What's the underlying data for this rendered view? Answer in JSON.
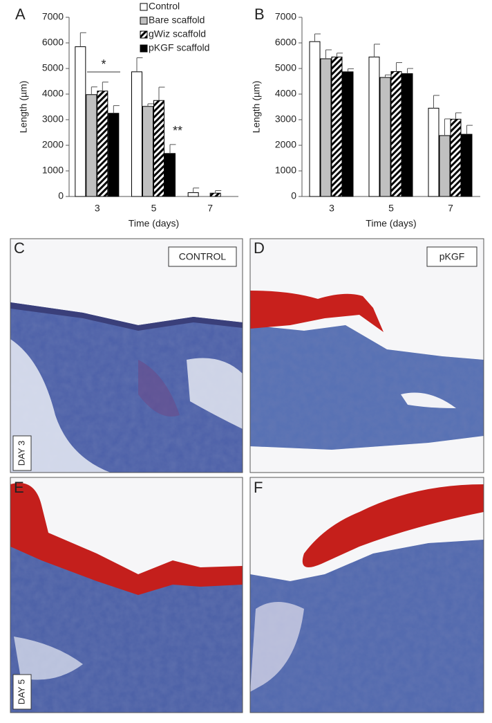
{
  "chart_data": [
    {
      "type": "bar",
      "panel_label": "A",
      "ylabel": "Length (µm)",
      "xlabel": "Time (days)",
      "categories": [
        "3",
        "5",
        "7"
      ],
      "ylim": [
        0,
        7000
      ],
      "yticks": [
        0,
        1000,
        2000,
        3000,
        4000,
        5000,
        6000,
        7000
      ],
      "legend": "upper right",
      "annotations": [
        "*",
        "**"
      ],
      "series": [
        {
          "name": "Control",
          "color": "#ffffff",
          "values": [
            5850,
            4870,
            150
          ],
          "errors": [
            550,
            550,
            180
          ]
        },
        {
          "name": "Bare scaffold",
          "color": "#c0c0c0",
          "values": [
            3980,
            3520,
            null
          ],
          "errors": [
            300,
            100,
            null
          ]
        },
        {
          "name": "gWiz scaffold",
          "color": "#000000",
          "hatch": true,
          "values": [
            4120,
            3750,
            130
          ],
          "errors": [
            350,
            520,
            100
          ]
        },
        {
          "name": "pKGF scaffold",
          "color": "#000000",
          "values": [
            3250,
            1680,
            null
          ],
          "errors": [
            300,
            350,
            null
          ]
        }
      ]
    },
    {
      "type": "bar",
      "panel_label": "B",
      "ylabel": "Length (µm)",
      "xlabel": "Time (days)",
      "categories": [
        "3",
        "5",
        "7"
      ],
      "ylim": [
        0,
        7000
      ],
      "yticks": [
        0,
        1000,
        2000,
        3000,
        4000,
        5000,
        6000,
        7000
      ],
      "legend": "none",
      "series": [
        {
          "color": "#ffffff",
          "values": [
            6050,
            5450,
            3450
          ],
          "errors": [
            300,
            500,
            500
          ]
        },
        {
          "color": "#c0c0c0",
          "values": [
            5380,
            4650,
            2380
          ],
          "errors": [
            350,
            100,
            650
          ]
        },
        {
          "color": "#000000",
          "hatch": true,
          "values": [
            5450,
            4880,
            3020
          ],
          "errors": [
            150,
            350,
            250
          ]
        },
        {
          "color": "#000000",
          "values": [
            4870,
            4800,
            2430
          ],
          "errors": [
            120,
            200,
            350
          ]
        }
      ]
    }
  ],
  "panels": [
    {
      "label": "C",
      "tag": "CONTROL",
      "day": "DAY 3"
    },
    {
      "label": "D",
      "tag": "pKGF"
    },
    {
      "label": "E",
      "day": "DAY 5"
    },
    {
      "label": "F"
    }
  ]
}
